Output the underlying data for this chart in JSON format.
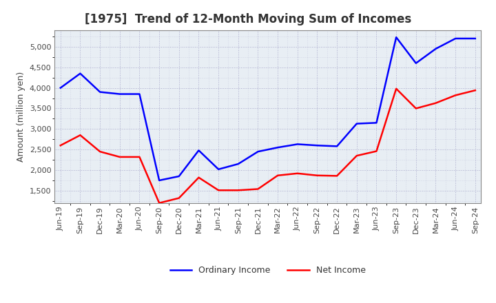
{
  "title": "[1975]  Trend of 12-Month Moving Sum of Incomes",
  "ylabel": "Amount (million yen)",
  "x_labels": [
    "Jun-19",
    "Sep-19",
    "Dec-19",
    "Mar-20",
    "Jun-20",
    "Sep-20",
    "Dec-20",
    "Mar-21",
    "Jun-21",
    "Sep-21",
    "Dec-21",
    "Mar-22",
    "Jun-22",
    "Sep-22",
    "Dec-22",
    "Mar-23",
    "Jun-23",
    "Sep-23",
    "Dec-23",
    "Mar-24",
    "Jun-24",
    "Sep-24"
  ],
  "ordinary_income": [
    4000,
    4350,
    3900,
    3850,
    3850,
    1750,
    1850,
    2480,
    2020,
    2150,
    2450,
    2550,
    2630,
    2600,
    2580,
    3130,
    3150,
    5230,
    4600,
    4950,
    5200,
    5200
  ],
  "net_income": [
    2600,
    2850,
    2450,
    2320,
    2320,
    1200,
    1320,
    1820,
    1510,
    1510,
    1540,
    1870,
    1920,
    1870,
    1860,
    2350,
    2460,
    3980,
    3500,
    3630,
    3820,
    3940
  ],
  "ordinary_color": "#0000FF",
  "net_color": "#FF0000",
  "ylim": [
    1200,
    5400
  ],
  "yticks": [
    1500,
    2000,
    2500,
    3000,
    3500,
    4000,
    4500,
    5000
  ],
  "plot_bg_color": "#E8EEF4",
  "background_color": "#FFFFFF",
  "grid_color": "#AAAACC",
  "title_fontsize": 12,
  "axis_fontsize": 9,
  "tick_fontsize": 8,
  "legend_fontsize": 9
}
